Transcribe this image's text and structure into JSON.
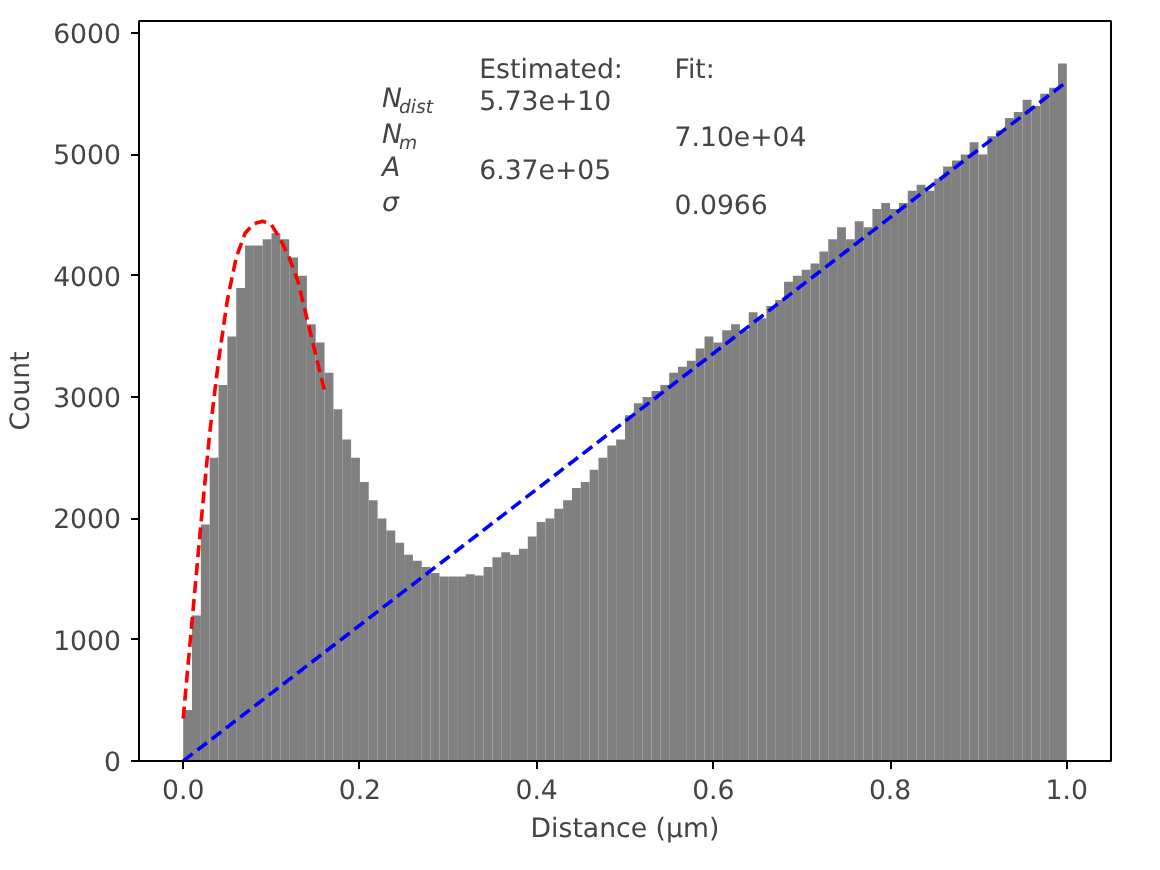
{
  "chart_data": {
    "type": "histogram",
    "xlabel": "Distance (µm)",
    "ylabel": "Count",
    "xlim": [
      -0.05,
      1.05
    ],
    "ylim": [
      0,
      6100
    ],
    "xticks": [
      {
        "value": 0,
        "label": "0.0"
      },
      {
        "value": 0.2,
        "label": "0.2"
      },
      {
        "value": 0.4,
        "label": "0.4"
      },
      {
        "value": 0.6,
        "label": "0.6"
      },
      {
        "value": 0.8,
        "label": "0.8"
      },
      {
        "value": 1,
        "label": "1.0"
      }
    ],
    "yticks": [
      0,
      1000,
      2000,
      3000,
      4000,
      5000,
      6000
    ],
    "grid": false,
    "annotations": [
      "Estimated:",
      "Fit:",
      "N$_{dist}$",
      "5.73e+10",
      "N$_{m}$",
      "7.10e+04",
      "A",
      "6.37e+05",
      "σ",
      "0.0966"
    ],
    "series": [
      {
        "color": "#808080",
        "bins": [
          0,
          0.01,
          0.02,
          0.03,
          0.04,
          0.05,
          0.06,
          0.07,
          0.08,
          0.09,
          0.1,
          0.11,
          0.12,
          0.13,
          0.14,
          0.15,
          0.16,
          0.17,
          0.18,
          0.19,
          0.2,
          0.21,
          0.22,
          0.23,
          0.24,
          0.25,
          0.26,
          0.27,
          0.28,
          0.29,
          0.3,
          0.31,
          0.32,
          0.33,
          0.34,
          0.35,
          0.36,
          0.37,
          0.38,
          0.39,
          0.4,
          0.41,
          0.42,
          0.43,
          0.44,
          0.45,
          0.46,
          0.47,
          0.48,
          0.49,
          0.5,
          0.51,
          0.52,
          0.53,
          0.54,
          0.55,
          0.56,
          0.57,
          0.58,
          0.59,
          0.6,
          0.61,
          0.62,
          0.63,
          0.64,
          0.65,
          0.66,
          0.67,
          0.68,
          0.69,
          0.7,
          0.71,
          0.72,
          0.73,
          0.74,
          0.75,
          0.76,
          0.77,
          0.78,
          0.79,
          0.8,
          0.81,
          0.82,
          0.83,
          0.84,
          0.85,
          0.86,
          0.87,
          0.88,
          0.89,
          0.9,
          0.91,
          0.92,
          0.93,
          0.94,
          0.95,
          0.96,
          0.97,
          0.98,
          0.99,
          1.0
        ],
        "values": [
          420,
          1200,
          1950,
          2500,
          3100,
          3500,
          3900,
          4250,
          4250,
          4300,
          4350,
          4300,
          4150,
          4000,
          3600,
          3450,
          3200,
          2900,
          2650,
          2500,
          2300,
          2150,
          2000,
          1900,
          1800,
          1700,
          1650,
          1600,
          1550,
          1520,
          1520,
          1520,
          1540,
          1530,
          1600,
          1680,
          1720,
          1700,
          1750,
          1850,
          1970,
          2000,
          2080,
          2150,
          2250,
          2300,
          2400,
          2500,
          2600,
          2650,
          2850,
          2950,
          3000,
          3050,
          3100,
          3200,
          3250,
          3300,
          3400,
          3500,
          3450,
          3550,
          3600,
          3550,
          3700,
          3650,
          3750,
          3800,
          3950,
          4000,
          4050,
          4100,
          4200,
          4300,
          4400,
          4300,
          4450,
          4400,
          4550,
          4600,
          4550,
          4600,
          4700,
          4750,
          4700,
          4800,
          4900,
          4950,
          5000,
          5100,
          5000,
          5150,
          5200,
          5300,
          5350,
          5450,
          5400,
          5500,
          5550,
          5750
        ]
      },
      {
        "type": "line",
        "color": "#ff0000",
        "line_style": "dashed",
        "x": [
          0,
          0.01,
          0.02,
          0.03,
          0.04,
          0.05,
          0.06,
          0.07,
          0.08,
          0.09,
          0.1,
          0.11,
          0.12,
          0.13,
          0.14,
          0.15,
          0.16
        ],
        "values": [
          350,
          1150,
          1950,
          2700,
          3300,
          3800,
          4150,
          4350,
          4430,
          4450,
          4420,
          4300,
          4150,
          3950,
          3650,
          3350,
          3050
        ]
      },
      {
        "type": "line",
        "color": "#0000ff",
        "line_style": "dashed",
        "x": [
          0,
          1
        ],
        "values": [
          0,
          5600
        ]
      }
    ]
  }
}
